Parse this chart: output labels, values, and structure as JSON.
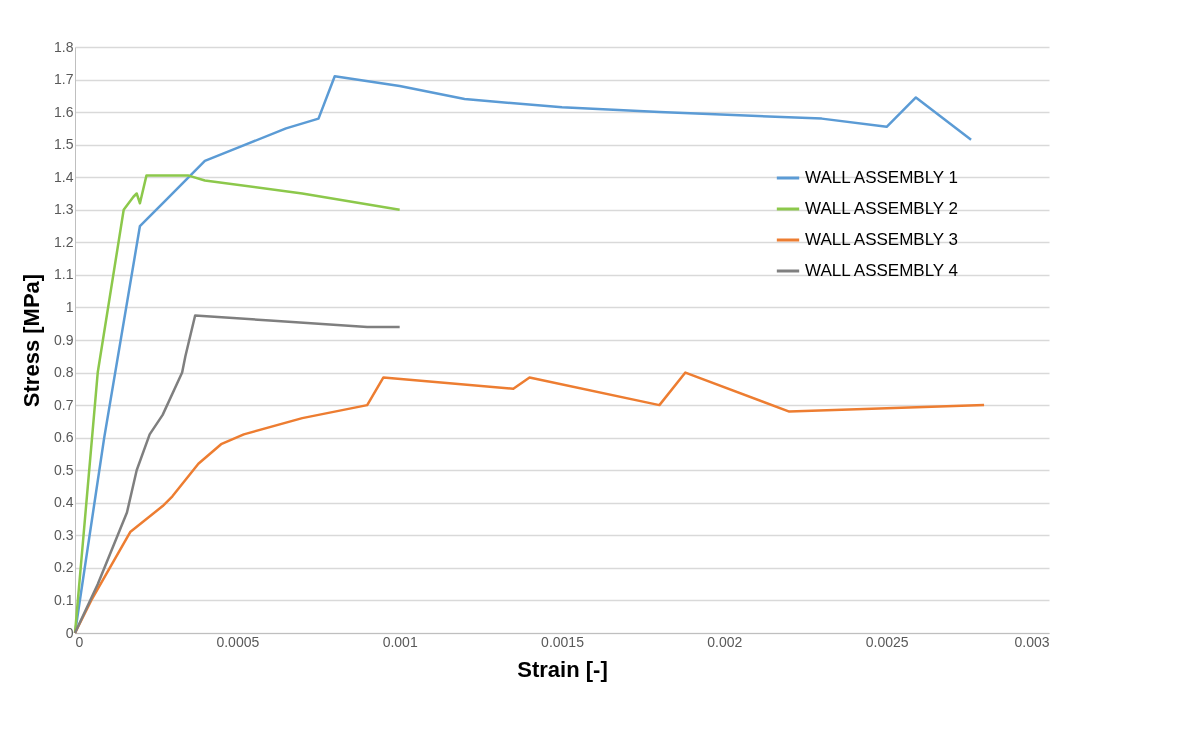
{
  "chart_data": {
    "type": "line",
    "xlabel": "Strain [-]",
    "ylabel": "Stress [MPa]",
    "xlim": [
      0,
      0.003
    ],
    "xticks": [
      0,
      0.0005,
      0.001,
      0.0015,
      0.002,
      0.0025,
      0.003
    ],
    "ylim": [
      0,
      1.8
    ],
    "yticks": [
      0,
      0.1,
      0.2,
      0.3,
      0.4,
      0.5,
      0.6,
      0.7,
      0.8,
      0.9,
      1,
      1.1,
      1.2,
      1.3,
      1.4,
      1.5,
      1.6,
      1.7,
      1.8
    ],
    "grid": "y",
    "legend": "right",
    "marker": "none",
    "line_style": "solid",
    "series": [
      {
        "name": "WALL ASSEMBLY 1",
        "color": "#5b9bd5",
        "x": [
          0,
          3e-05,
          9e-05,
          0.0002,
          0.00028,
          0.0004,
          0.0005,
          0.00065,
          0.00075,
          0.0008,
          0.001,
          0.0012,
          0.0015,
          0.0018,
          0.0023,
          0.0025,
          0.00259,
          0.00276
        ],
        "values": [
          0,
          0.2,
          0.6,
          1.25,
          1.33,
          1.45,
          1.49,
          1.55,
          1.58,
          1.71,
          1.68,
          1.64,
          1.615,
          1.6,
          1.58,
          1.555,
          1.645,
          1.515
        ]
      },
      {
        "name": "WALL ASSEMBLY 2",
        "color": "#8cc84b",
        "x": [
          0,
          7e-05,
          0.00015,
          0.00018,
          0.00019,
          0.0002,
          0.00022,
          0.00035,
          0.0004,
          0.0007,
          0.001
        ],
        "values": [
          0,
          0.8,
          1.3,
          1.34,
          1.35,
          1.32,
          1.405,
          1.405,
          1.39,
          1.35,
          1.3
        ]
      },
      {
        "name": "WALL ASSEMBLY 3",
        "color": "#ed7d31",
        "x": [
          0,
          5e-05,
          0.00017,
          0.00027,
          0.0003,
          0.00038,
          0.00045,
          0.00052,
          0.0007,
          0.0009,
          0.00095,
          0.00135,
          0.0014,
          0.0018,
          0.00188,
          0.0022,
          0.0028
        ],
        "values": [
          0,
          0.1,
          0.31,
          0.39,
          0.42,
          0.52,
          0.58,
          0.61,
          0.66,
          0.7,
          0.785,
          0.75,
          0.785,
          0.7,
          0.8,
          0.68,
          0.7
        ]
      },
      {
        "name": "WALL ASSEMBLY 4",
        "color": "#7f7f7f",
        "x": [
          0,
          7e-05,
          0.00016,
          0.00019,
          0.00023,
          0.00027,
          0.00033,
          0.00034,
          0.00037,
          0.0006,
          0.0009,
          0.001
        ],
        "values": [
          0,
          0.15,
          0.37,
          0.5,
          0.61,
          0.67,
          0.8,
          0.85,
          0.975,
          0.96,
          0.94,
          0.94
        ]
      }
    ]
  }
}
